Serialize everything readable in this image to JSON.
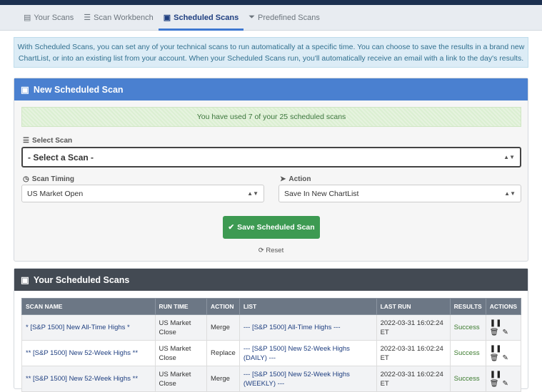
{
  "tabs": [
    {
      "label": "Your Scans",
      "icon": "list-icon"
    },
    {
      "label": "Scan Workbench",
      "icon": "sliders-icon"
    },
    {
      "label": "Scheduled Scans",
      "icon": "calendar-check-icon",
      "active": true
    },
    {
      "label": "Predefined Scans",
      "icon": "filter-icon"
    }
  ],
  "info": "With Scheduled Scans, you can set any of your technical scans to run automatically at a specific time. You can choose to save the results in a brand new ChartList, or into an existing list from your account. When your Scheduled Scans run, you'll automatically receive an email with a link to the day's results.",
  "new_panel": {
    "title": "New Scheduled Scan",
    "usage": "You have used 7 of your 25 scheduled scans",
    "select_scan_label": "Select Scan",
    "select_scan_value": "- Select a Scan -",
    "timing_label": "Scan Timing",
    "timing_value": "US Market Open",
    "action_label": "Action",
    "action_value": "Save In New ChartList",
    "save_label": "Save Scheduled Scan",
    "reset_label": "Reset"
  },
  "list_panel": {
    "title": "Your Scheduled Scans",
    "columns": [
      "SCAN NAME",
      "RUN TIME",
      "ACTION",
      "LIST",
      "LAST RUN",
      "RESULTS",
      "ACTIONS"
    ],
    "rows": [
      {
        "name": "* [S&P 1500] New All-Time Highs *",
        "run_time": "US Market Close",
        "action": "Merge",
        "list": "--- [S&P 1500] All-Time Highs ---",
        "last_run": "2022-03-31 16:02:24 ET",
        "result": "Success"
      },
      {
        "name": "** [S&P 1500] New 52-Week Highs **",
        "run_time": "US Market Close",
        "action": "Replace",
        "list": "--- [S&P 1500] New 52-Week Highs (DAILY) ---",
        "last_run": "2022-03-31 16:02:24 ET",
        "result": "Success"
      },
      {
        "name": "** [S&P 1500] New 52-Week Highs **",
        "run_time": "US Market Close",
        "action": "Merge",
        "list": "--- [S&P 1500] New 52-Week Highs (WEEKLY) ---",
        "last_run": "2022-03-31 16:02:24 ET",
        "result": "Success"
      }
    ]
  },
  "colors": {
    "accent": "#3e78d1",
    "success": "#3d9a52"
  }
}
